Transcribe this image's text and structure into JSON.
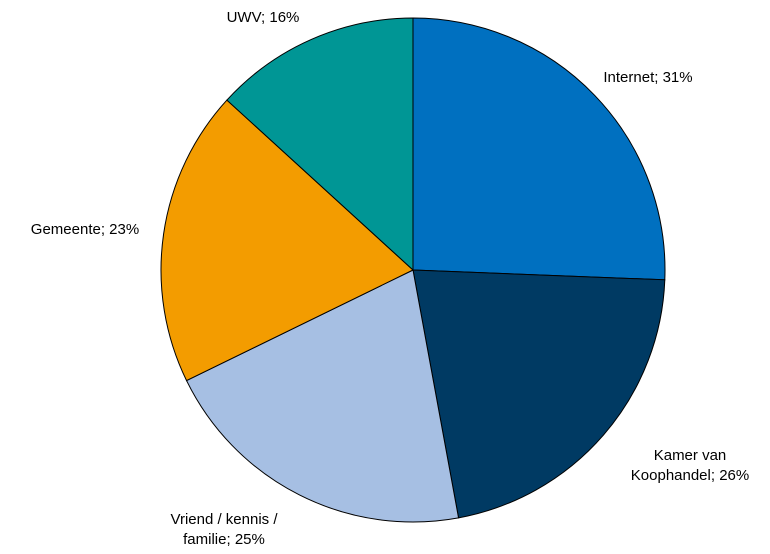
{
  "chart_data": {
    "type": "pie",
    "values": [
      31,
      26,
      25,
      23,
      16
    ],
    "value_labels": [
      "Internet; 31%",
      "Kamer van Koophandel; 26%",
      "Vriend / kennis / familie; 25%",
      "Gemeente; 23%",
      "UWV; 16%"
    ],
    "colors": [
      "#0070c0",
      "#003a63",
      "#a6bfe3",
      "#f39c00",
      "#009695"
    ]
  }
}
